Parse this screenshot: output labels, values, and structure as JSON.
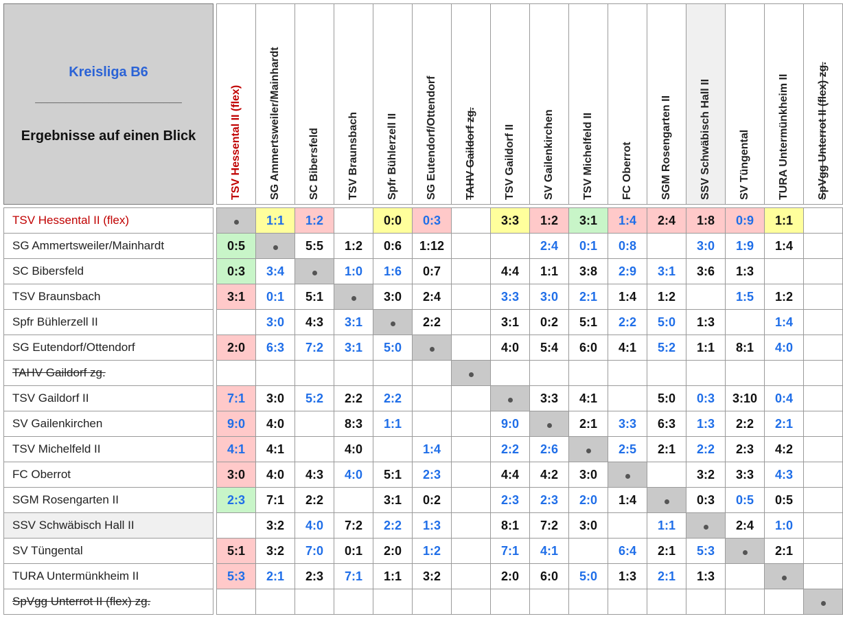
{
  "header": {
    "league": "Kreisliga B6",
    "rule": "________________________",
    "subtitle": "Ergebnisse auf einen Blick"
  },
  "colors": {
    "highlight_red": "#c00000",
    "blue": "#1f6ee8",
    "yellow": "#ffff9c",
    "pink": "#ffc9c9",
    "green": "#c8f5c8",
    "diag_gray": "#c9c9c9"
  },
  "teams": [
    {
      "name": "TSV Hessental II (flex)",
      "red": true
    },
    {
      "name": "SG Ammertsweiler/Mainhardt"
    },
    {
      "name": "SC Bibersfeld"
    },
    {
      "name": "TSV Braunsbach"
    },
    {
      "name": "Spfr Bühlerzell II"
    },
    {
      "name": "SG Eutendorf/Ottendorf"
    },
    {
      "name": "TAHV Gaildorf zg.",
      "struck": true
    },
    {
      "name": "TSV Gaildorf II"
    },
    {
      "name": "SV Gailenkirchen"
    },
    {
      "name": "TSV Michelfeld II"
    },
    {
      "name": "FC Oberrot"
    },
    {
      "name": "SGM Rosengarten II"
    },
    {
      "name": "SSV Schwäbisch Hall II",
      "hl": true
    },
    {
      "name": "SV Tüngental"
    },
    {
      "name": "TURA Untermünkheim II"
    },
    {
      "name": "SpVgg Unterrot II (flex) zg.",
      "struck": true
    }
  ],
  "results": [
    [
      null,
      [
        "1:1",
        "b",
        "y"
      ],
      [
        "1:2",
        "b",
        "p"
      ],
      null,
      [
        "0:0",
        "k",
        "y"
      ],
      [
        "0:3",
        "b",
        "p"
      ],
      null,
      [
        "3:3",
        "k",
        "y"
      ],
      [
        "1:2",
        "k",
        "p"
      ],
      [
        "3:1",
        "k",
        "g"
      ],
      [
        "1:4",
        "b",
        "p"
      ],
      [
        "2:4",
        "k",
        "p"
      ],
      [
        "1:8",
        "k",
        "p"
      ],
      [
        "0:9",
        "b",
        "p"
      ],
      [
        "1:1",
        "k",
        "y"
      ],
      null
    ],
    [
      [
        "0:5",
        "k",
        "g"
      ],
      null,
      [
        "5:5",
        "k"
      ],
      [
        "1:2",
        "k"
      ],
      [
        "0:6",
        "k"
      ],
      [
        "1:12",
        "k"
      ],
      null,
      null,
      [
        "2:4",
        "b"
      ],
      [
        "0:1",
        "b"
      ],
      [
        "0:8",
        "b"
      ],
      null,
      [
        "3:0",
        "b"
      ],
      [
        "1:9",
        "b"
      ],
      [
        "1:4",
        "k"
      ],
      null
    ],
    [
      [
        "0:3",
        "k",
        "g"
      ],
      [
        "3:4",
        "b"
      ],
      null,
      [
        "1:0",
        "b"
      ],
      [
        "1:6",
        "b"
      ],
      [
        "0:7",
        "k"
      ],
      null,
      [
        "4:4",
        "k"
      ],
      [
        "1:1",
        "k"
      ],
      [
        "3:8",
        "k"
      ],
      [
        "2:9",
        "b"
      ],
      [
        "3:1",
        "b"
      ],
      [
        "3:6",
        "k"
      ],
      [
        "1:3",
        "k"
      ],
      null,
      null
    ],
    [
      [
        "3:1",
        "k",
        "p"
      ],
      [
        "0:1",
        "b"
      ],
      [
        "5:1",
        "k"
      ],
      null,
      [
        "3:0",
        "k"
      ],
      [
        "2:4",
        "k"
      ],
      null,
      [
        "3:3",
        "b"
      ],
      [
        "3:0",
        "b"
      ],
      [
        "2:1",
        "b"
      ],
      [
        "1:4",
        "k"
      ],
      [
        "1:2",
        "k"
      ],
      null,
      [
        "1:5",
        "b"
      ],
      [
        "1:2",
        "k"
      ],
      null
    ],
    [
      null,
      [
        "3:0",
        "b"
      ],
      [
        "4:3",
        "k"
      ],
      [
        "3:1",
        "b"
      ],
      null,
      [
        "2:2",
        "k"
      ],
      null,
      [
        "3:1",
        "k"
      ],
      [
        "0:2",
        "k"
      ],
      [
        "5:1",
        "k"
      ],
      [
        "2:2",
        "b"
      ],
      [
        "5:0",
        "b"
      ],
      [
        "1:3",
        "k"
      ],
      null,
      [
        "1:4",
        "b"
      ],
      null
    ],
    [
      [
        "2:0",
        "k",
        "p"
      ],
      [
        "6:3",
        "b"
      ],
      [
        "7:2",
        "b"
      ],
      [
        "3:1",
        "b"
      ],
      [
        "5:0",
        "b"
      ],
      null,
      null,
      [
        "4:0",
        "k"
      ],
      [
        "5:4",
        "k"
      ],
      [
        "6:0",
        "k"
      ],
      [
        "4:1",
        "k"
      ],
      [
        "5:2",
        "b"
      ],
      [
        "1:1",
        "k"
      ],
      [
        "8:1",
        "k"
      ],
      [
        "4:0",
        "b"
      ],
      null
    ],
    [
      null,
      null,
      null,
      null,
      null,
      null,
      null,
      null,
      null,
      null,
      null,
      null,
      null,
      null,
      null,
      null
    ],
    [
      [
        "7:1",
        "b",
        "p"
      ],
      [
        "3:0",
        "k"
      ],
      [
        "5:2",
        "b"
      ],
      [
        "2:2",
        "k"
      ],
      [
        "2:2",
        "b"
      ],
      null,
      null,
      null,
      [
        "3:3",
        "k"
      ],
      [
        "4:1",
        "k"
      ],
      null,
      [
        "5:0",
        "k"
      ],
      [
        "0:3",
        "b"
      ],
      [
        "3:10",
        "k"
      ],
      [
        "0:4",
        "b"
      ],
      null
    ],
    [
      [
        "9:0",
        "b",
        "p"
      ],
      [
        "4:0",
        "k"
      ],
      null,
      [
        "8:3",
        "k"
      ],
      [
        "1:1",
        "b"
      ],
      null,
      null,
      [
        "9:0",
        "b"
      ],
      null,
      [
        "2:1",
        "k"
      ],
      [
        "3:3",
        "b"
      ],
      [
        "6:3",
        "k"
      ],
      [
        "1:3",
        "b"
      ],
      [
        "2:2",
        "k"
      ],
      [
        "2:1",
        "b"
      ],
      null
    ],
    [
      [
        "4:1",
        "b",
        "p"
      ],
      [
        "4:1",
        "k"
      ],
      null,
      [
        "4:0",
        "k"
      ],
      null,
      [
        "1:4",
        "b"
      ],
      null,
      [
        "2:2",
        "b"
      ],
      [
        "2:6",
        "b"
      ],
      null,
      [
        "2:5",
        "b"
      ],
      [
        "2:1",
        "k"
      ],
      [
        "2:2",
        "b"
      ],
      [
        "2:3",
        "k"
      ],
      [
        "4:2",
        "k"
      ],
      null
    ],
    [
      [
        "3:0",
        "k",
        "p"
      ],
      [
        "4:0",
        "k"
      ],
      [
        "4:3",
        "k"
      ],
      [
        "4:0",
        "b"
      ],
      [
        "5:1",
        "k"
      ],
      [
        "2:3",
        "b"
      ],
      null,
      [
        "4:4",
        "k"
      ],
      [
        "4:2",
        "k"
      ],
      [
        "3:0",
        "k"
      ],
      null,
      null,
      [
        "3:2",
        "k"
      ],
      [
        "3:3",
        "k"
      ],
      [
        "4:3",
        "b"
      ],
      null
    ],
    [
      [
        "2:3",
        "b",
        "g"
      ],
      [
        "7:1",
        "k"
      ],
      [
        "2:2",
        "k"
      ],
      null,
      [
        "3:1",
        "k"
      ],
      [
        "0:2",
        "k"
      ],
      null,
      [
        "2:3",
        "b"
      ],
      [
        "2:3",
        "b"
      ],
      [
        "2:0",
        "b"
      ],
      [
        "1:4",
        "k"
      ],
      null,
      [
        "0:3",
        "k"
      ],
      [
        "0:5",
        "b"
      ],
      [
        "0:5",
        "k"
      ],
      null
    ],
    [
      null,
      [
        "3:2",
        "k"
      ],
      [
        "4:0",
        "b"
      ],
      [
        "7:2",
        "k"
      ],
      [
        "2:2",
        "b"
      ],
      [
        "1:3",
        "b"
      ],
      null,
      [
        "8:1",
        "k"
      ],
      [
        "7:2",
        "k"
      ],
      [
        "3:0",
        "k"
      ],
      null,
      [
        "1:1",
        "b"
      ],
      null,
      [
        "2:4",
        "k"
      ],
      [
        "1:0",
        "b"
      ],
      null
    ],
    [
      [
        "5:1",
        "k",
        "p"
      ],
      [
        "3:2",
        "k"
      ],
      [
        "7:0",
        "b"
      ],
      [
        "0:1",
        "k"
      ],
      [
        "2:0",
        "k"
      ],
      [
        "1:2",
        "b"
      ],
      null,
      [
        "7:1",
        "b"
      ],
      [
        "4:1",
        "b"
      ],
      null,
      [
        "6:4",
        "b"
      ],
      [
        "2:1",
        "k"
      ],
      [
        "5:3",
        "b"
      ],
      null,
      [
        "2:1",
        "k"
      ],
      null
    ],
    [
      [
        "5:3",
        "b",
        "p"
      ],
      [
        "2:1",
        "b"
      ],
      [
        "2:3",
        "k"
      ],
      [
        "7:1",
        "b"
      ],
      [
        "1:1",
        "k"
      ],
      [
        "3:2",
        "k"
      ],
      null,
      [
        "2:0",
        "k"
      ],
      [
        "6:0",
        "k"
      ],
      [
        "5:0",
        "b"
      ],
      [
        "1:3",
        "k"
      ],
      [
        "2:1",
        "b"
      ],
      [
        "1:3",
        "k"
      ],
      null,
      null,
      null
    ],
    [
      null,
      null,
      null,
      null,
      null,
      null,
      null,
      null,
      null,
      null,
      null,
      null,
      null,
      null,
      null,
      null
    ]
  ]
}
